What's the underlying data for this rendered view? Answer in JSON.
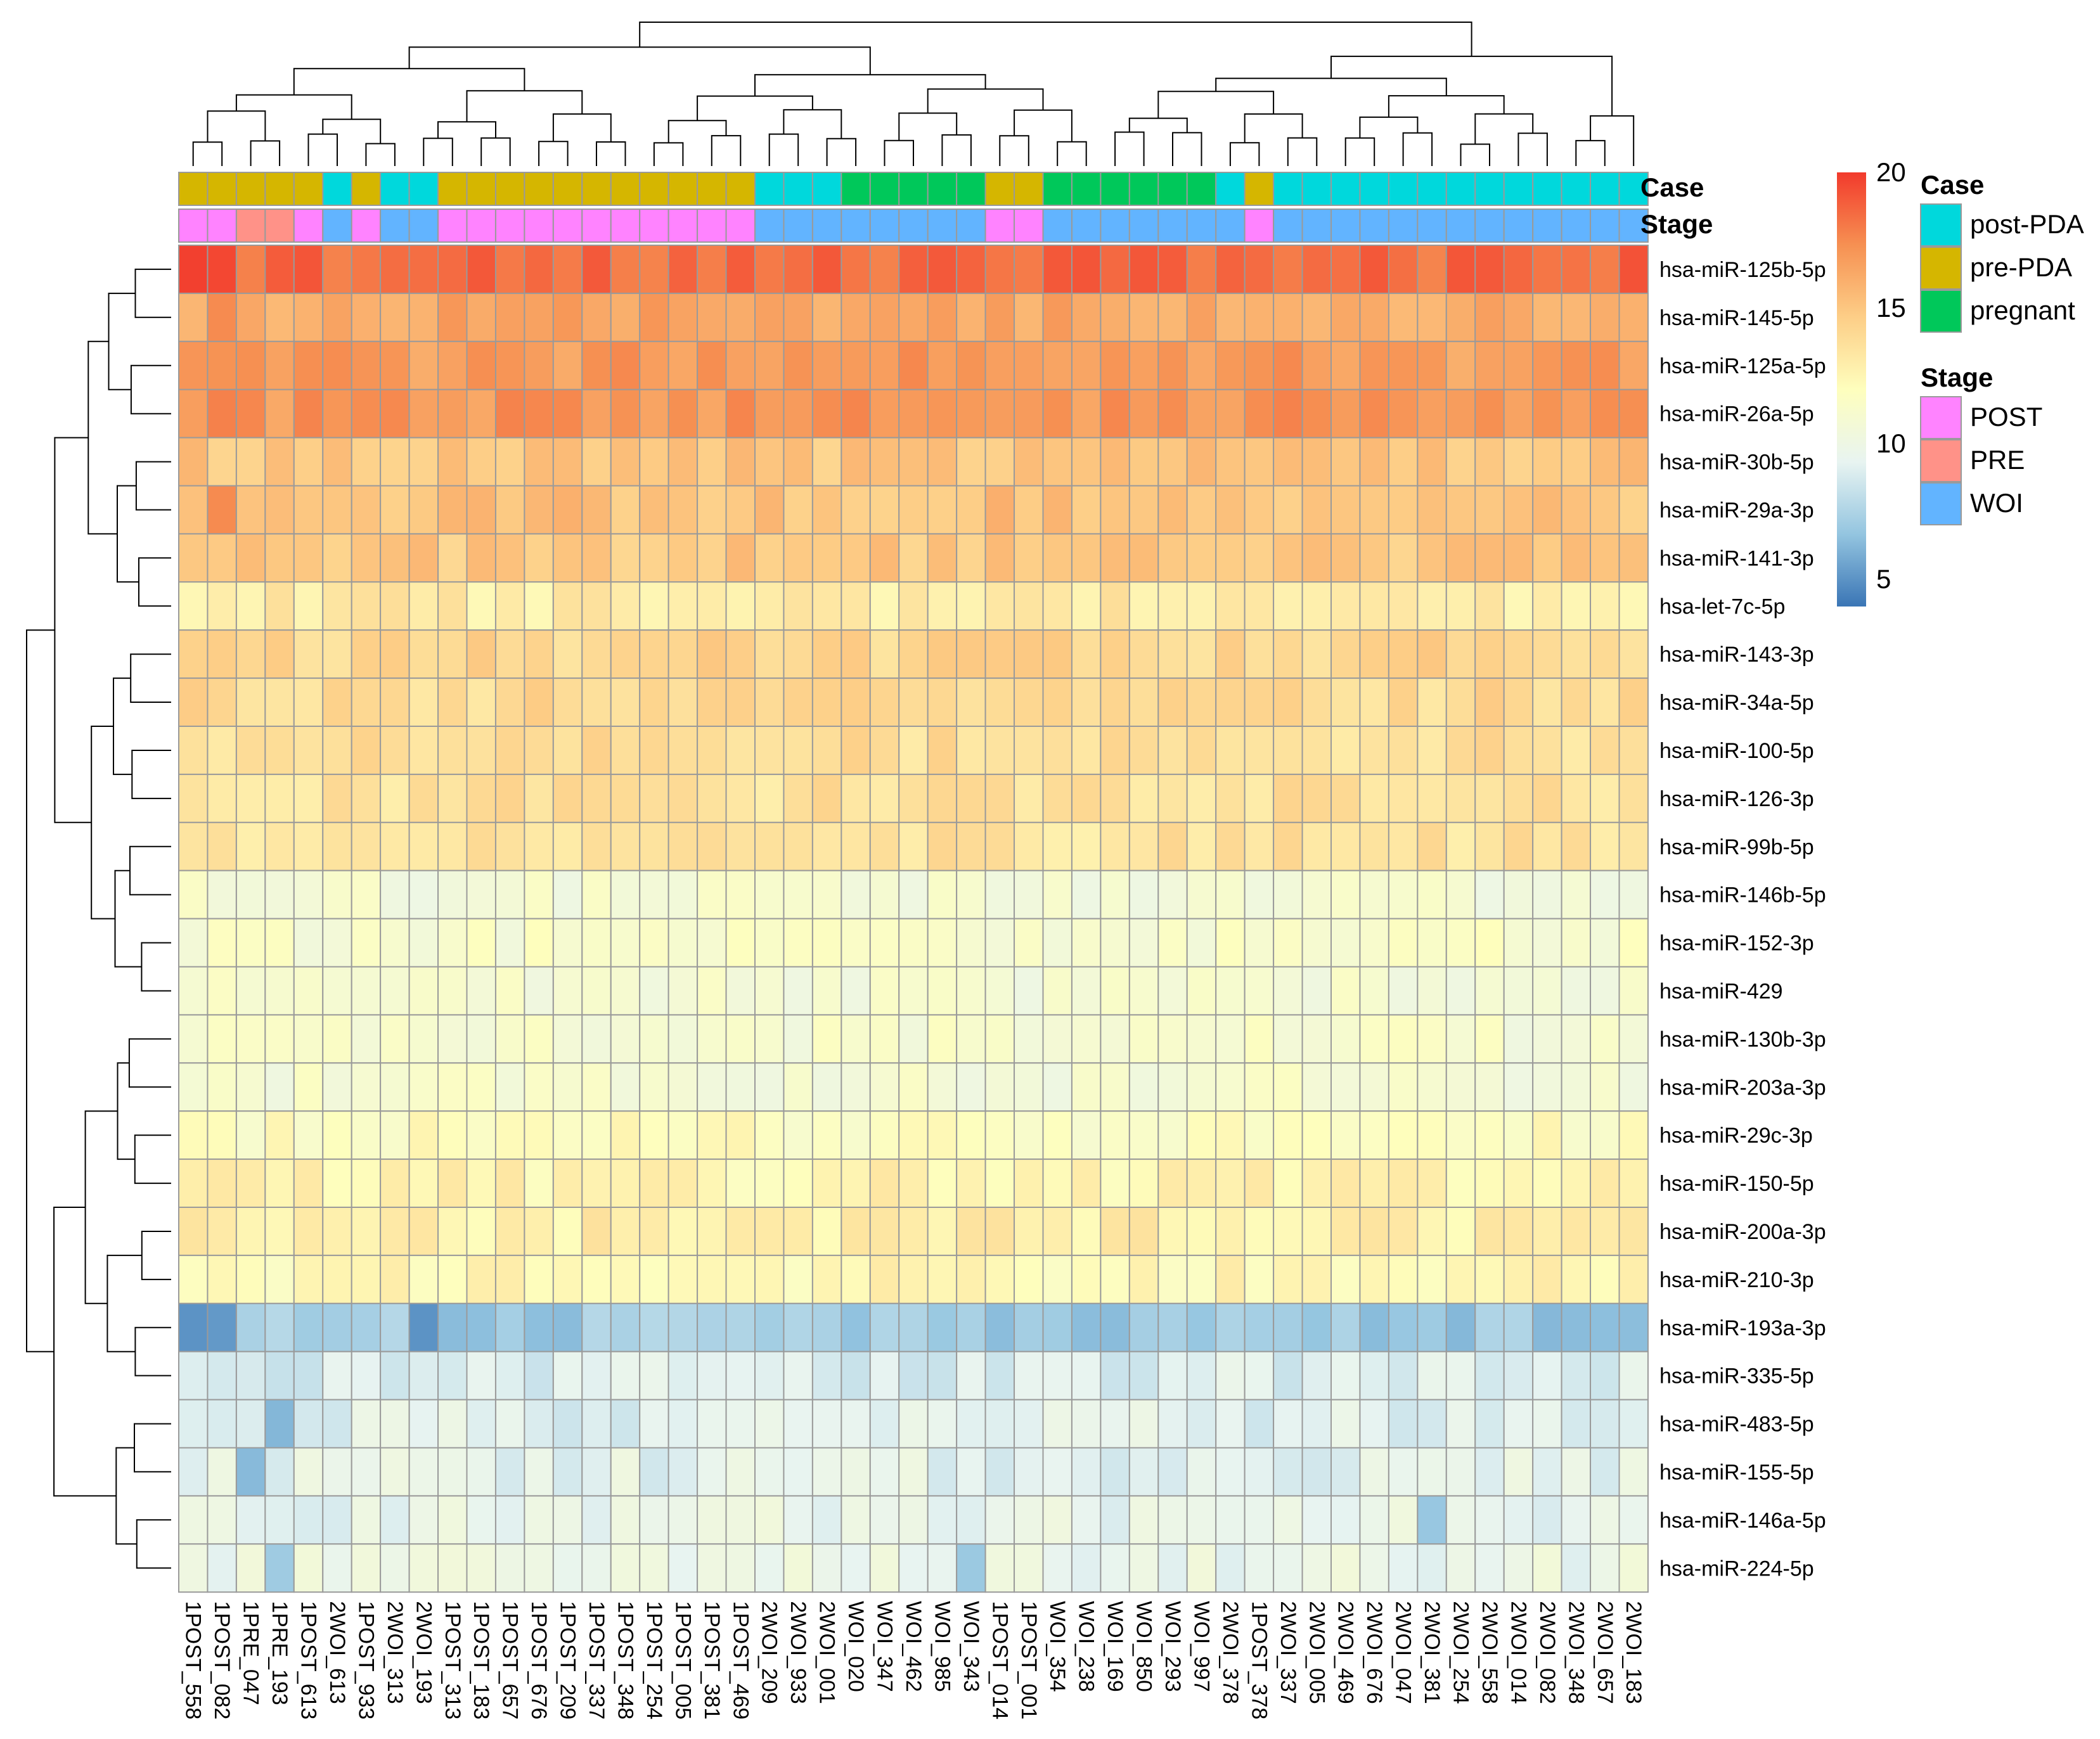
{
  "chart_data": {
    "type": "heatmap",
    "title": "",
    "xlabel": "",
    "ylabel": "",
    "columns": [
      "1POST_558",
      "1POST_082",
      "1PRE_047",
      "1PRE_193",
      "1POST_613",
      "2WOI_613",
      "1POST_933",
      "2WOI_313",
      "2WOI_193",
      "1POST_313",
      "1POST_183",
      "1POST_657",
      "1POST_676",
      "1POST_209",
      "1POST_337",
      "1POST_348",
      "1POST_254",
      "1POST_005",
      "1POST_381",
      "1POST_469",
      "2WOI_209",
      "2WOI_933",
      "2WOI_001",
      "WOI_020",
      "WOI_347",
      "WOI_462",
      "WOI_985",
      "WOI_343",
      "1POST_014",
      "1POST_001",
      "WOI_354",
      "WOI_238",
      "WOI_169",
      "WOI_850",
      "WOI_293",
      "WOI_997",
      "2WOI_378",
      "1POST_378",
      "2WOI_337",
      "2WOI_005",
      "2WOI_469",
      "2WOI_676",
      "2WOI_047",
      "2WOI_381",
      "2WOI_254",
      "2WOI_558",
      "2WOI_014",
      "2WOI_082",
      "2WOI_348",
      "2WOI_657",
      "2WOI_183"
    ],
    "rows": [
      "hsa-miR-125b-5p",
      "hsa-miR-145-5p",
      "hsa-miR-125a-5p",
      "hsa-miR-26a-5p",
      "hsa-miR-30b-5p",
      "hsa-miR-29a-3p",
      "hsa-miR-141-3p",
      "hsa-let-7c-5p",
      "hsa-miR-143-3p",
      "hsa-miR-34a-5p",
      "hsa-miR-100-5p",
      "hsa-miR-126-3p",
      "hsa-miR-99b-5p",
      "hsa-miR-146b-5p",
      "hsa-miR-152-3p",
      "hsa-miR-429",
      "hsa-miR-130b-3p",
      "hsa-miR-203a-3p",
      "hsa-miR-29c-3p",
      "hsa-miR-150-5p",
      "hsa-miR-200a-3p",
      "hsa-miR-210-3p",
      "hsa-miR-193a-3p",
      "hsa-miR-335-5p",
      "hsa-miR-483-5p",
      "hsa-miR-155-5p",
      "hsa-miR-146a-5p",
      "hsa-miR-224-5p"
    ],
    "case": [
      "pre-PDA",
      "pre-PDA",
      "pre-PDA",
      "pre-PDA",
      "pre-PDA",
      "post-PDA",
      "pre-PDA",
      "post-PDA",
      "post-PDA",
      "pre-PDA",
      "pre-PDA",
      "pre-PDA",
      "pre-PDA",
      "pre-PDA",
      "pre-PDA",
      "pre-PDA",
      "pre-PDA",
      "pre-PDA",
      "pre-PDA",
      "pre-PDA",
      "post-PDA",
      "post-PDA",
      "post-PDA",
      "pregnant",
      "pregnant",
      "pregnant",
      "pregnant",
      "pregnant",
      "pre-PDA",
      "pre-PDA",
      "pregnant",
      "pregnant",
      "pregnant",
      "pregnant",
      "pregnant",
      "pregnant",
      "post-PDA",
      "pre-PDA",
      "post-PDA",
      "post-PDA",
      "post-PDA",
      "post-PDA",
      "post-PDA",
      "post-PDA",
      "post-PDA",
      "post-PDA",
      "post-PDA",
      "post-PDA",
      "post-PDA",
      "post-PDA",
      "post-PDA"
    ],
    "stage": [
      "POST",
      "POST",
      "PRE",
      "PRE",
      "POST",
      "WOI",
      "POST",
      "WOI",
      "WOI",
      "POST",
      "POST",
      "POST",
      "POST",
      "POST",
      "POST",
      "POST",
      "POST",
      "POST",
      "POST",
      "POST",
      "WOI",
      "WOI",
      "WOI",
      "WOI",
      "WOI",
      "WOI",
      "WOI",
      "WOI",
      "POST",
      "POST",
      "WOI",
      "WOI",
      "WOI",
      "WOI",
      "WOI",
      "WOI",
      "WOI",
      "POST",
      "WOI",
      "WOI",
      "WOI",
      "WOI",
      "WOI",
      "WOI",
      "WOI",
      "WOI",
      "WOI",
      "WOI",
      "WOI",
      "WOI",
      "WOI"
    ],
    "row_base": [
      18.5,
      16.3,
      16.8,
      17.0,
      15.0,
      15.2,
      14.8,
      13.0,
      14.2,
      14.0,
      13.8,
      13.6,
      13.5,
      10.8,
      11.2,
      10.8,
      11.0,
      10.9,
      11.8,
      12.5,
      12.8,
      12.3,
      7.0,
      9.0,
      9.2,
      9.4,
      9.6,
      9.8
    ],
    "values_note_overrides": [
      {
        "row": 0,
        "col": 0,
        "value": 19.8
      },
      {
        "row": 0,
        "col": 1,
        "value": 19.6
      },
      {
        "row": 1,
        "col": 1,
        "value": 17.5
      },
      {
        "row": 3,
        "col": 1,
        "value": 17.8
      },
      {
        "row": 5,
        "col": 1,
        "value": 17.5
      },
      {
        "row": 22,
        "col": 0,
        "value": 5.0
      },
      {
        "row": 22,
        "col": 1,
        "value": 5.2
      },
      {
        "row": 22,
        "col": 8,
        "value": 5.0
      },
      {
        "row": 24,
        "col": 3,
        "value": 6.2
      },
      {
        "row": 25,
        "col": 2,
        "value": 6.3
      },
      {
        "row": 26,
        "col": 43,
        "value": 6.8
      },
      {
        "row": 27,
        "col": 3,
        "value": 7.0
      },
      {
        "row": 27,
        "col": 27,
        "value": 6.9
      }
    ],
    "labels": {
      "case_annotation": "Case",
      "stage_annotation": "Stage"
    },
    "colorbar": {
      "ticks": [
        "20",
        "15",
        "10",
        "5"
      ],
      "tick_values": [
        20,
        15,
        10,
        5
      ],
      "range": [
        4.0,
        20.0
      ],
      "colors": [
        "#3a75b5",
        "#94c5e0",
        "#e8f4f1",
        "#fefebd",
        "#fdce87",
        "#f69052",
        "#f23a2c"
      ]
    },
    "legend": {
      "case": {
        "title": "Case",
        "items": [
          {
            "label": "post-PDA",
            "color": "#00d8dc"
          },
          {
            "label": "pre-PDA",
            "color": "#d5b600"
          },
          {
            "label": "pregnant",
            "color": "#00c85a"
          }
        ]
      },
      "stage": {
        "title": "Stage",
        "items": [
          {
            "label": "POST",
            "color": "#ff83ff"
          },
          {
            "label": "PRE",
            "color": "#ff9288"
          },
          {
            "label": "WOI",
            "color": "#62b4ff"
          }
        ]
      }
    }
  }
}
